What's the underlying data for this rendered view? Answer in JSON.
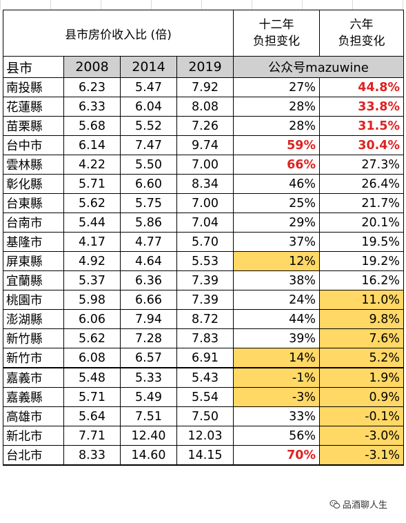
{
  "header": {
    "title": "县市房价收入比 (倍)",
    "col_12y": "十二年\n负担变化",
    "col_6y": "六年\n负担变化"
  },
  "subheader": {
    "county": "县市",
    "y2008": "2008",
    "y2014": "2014",
    "y2019": "2019",
    "watermark": "公众号mazuwine"
  },
  "rows": [
    {
      "name": "南投縣",
      "v2008": "6.23",
      "v2014": "5.47",
      "v2019": "7.92",
      "c12": "27%",
      "c6": "44.8%"
    },
    {
      "name": "花蓮縣",
      "v2008": "6.33",
      "v2014": "6.04",
      "v2019": "8.08",
      "c12": "28%",
      "c6": "33.8%"
    },
    {
      "name": "苗栗縣",
      "v2008": "5.68",
      "v2014": "5.52",
      "v2019": "7.26",
      "c12": "28%",
      "c6": "31.5%"
    },
    {
      "name": "台中市",
      "v2008": "6.14",
      "v2014": "7.47",
      "v2019": "9.74",
      "c12": "59%",
      "c6": "30.4%"
    },
    {
      "name": "雲林縣",
      "v2008": "4.22",
      "v2014": "5.50",
      "v2019": "7.00",
      "c12": "66%",
      "c6": "27.3%"
    },
    {
      "name": "彰化縣",
      "v2008": "5.71",
      "v2014": "6.60",
      "v2019": "8.34",
      "c12": "46%",
      "c6": "26.4%"
    },
    {
      "name": "台東縣",
      "v2008": "5.62",
      "v2014": "5.75",
      "v2019": "7.00",
      "c12": "25%",
      "c6": "21.7%"
    },
    {
      "name": "台南市",
      "v2008": "5.44",
      "v2014": "5.86",
      "v2019": "7.04",
      "c12": "29%",
      "c6": "20.1%"
    },
    {
      "name": "基隆市",
      "v2008": "4.17",
      "v2014": "4.77",
      "v2019": "5.70",
      "c12": "37%",
      "c6": "19.5%"
    },
    {
      "name": "屏東縣",
      "v2008": "4.92",
      "v2014": "4.64",
      "v2019": "5.53",
      "c12": "12%",
      "c6": "19.2%"
    },
    {
      "name": "宜蘭縣",
      "v2008": "5.37",
      "v2014": "6.36",
      "v2019": "7.39",
      "c12": "38%",
      "c6": "16.2%"
    },
    {
      "name": "桃園市",
      "v2008": "5.98",
      "v2014": "6.66",
      "v2019": "7.39",
      "c12": "24%",
      "c6": "11.0%"
    },
    {
      "name": "澎湖縣",
      "v2008": "6.06",
      "v2014": "7.94",
      "v2019": "8.72",
      "c12": "44%",
      "c6": "9.8%"
    },
    {
      "name": "新竹縣",
      "v2008": "5.62",
      "v2014": "7.28",
      "v2019": "7.83",
      "c12": "39%",
      "c6": "7.6%"
    },
    {
      "name": "新竹市",
      "v2008": "6.08",
      "v2014": "6.57",
      "v2019": "6.91",
      "c12": "14%",
      "c6": "5.2%"
    },
    {
      "name": "嘉義市",
      "v2008": "5.48",
      "v2014": "5.33",
      "v2019": "5.43",
      "c12": "-1%",
      "c6": "1.9%"
    },
    {
      "name": "嘉義縣",
      "v2008": "5.71",
      "v2014": "5.49",
      "v2019": "5.54",
      "c12": "-3%",
      "c6": "0.9%"
    },
    {
      "name": "高雄市",
      "v2008": "5.64",
      "v2014": "7.51",
      "v2019": "7.50",
      "c12": "33%",
      "c6": "-0.1%"
    },
    {
      "name": "新北市",
      "v2008": "7.71",
      "v2014": "12.40",
      "v2019": "12.03",
      "c12": "56%",
      "c6": "-3.0%"
    },
    {
      "name": "台北市",
      "v2008": "8.33",
      "v2014": "14.60",
      "v2019": "14.15",
      "c12": "70%",
      "c6": "-3.1%"
    }
  ],
  "credit": {
    "text": "品酒聊人生",
    "icon": "wechat-icon"
  },
  "colors": {
    "highlight": "#ffd866",
    "emphasis_red": "#e02020",
    "year_row_bg": "#d0d0d0"
  }
}
